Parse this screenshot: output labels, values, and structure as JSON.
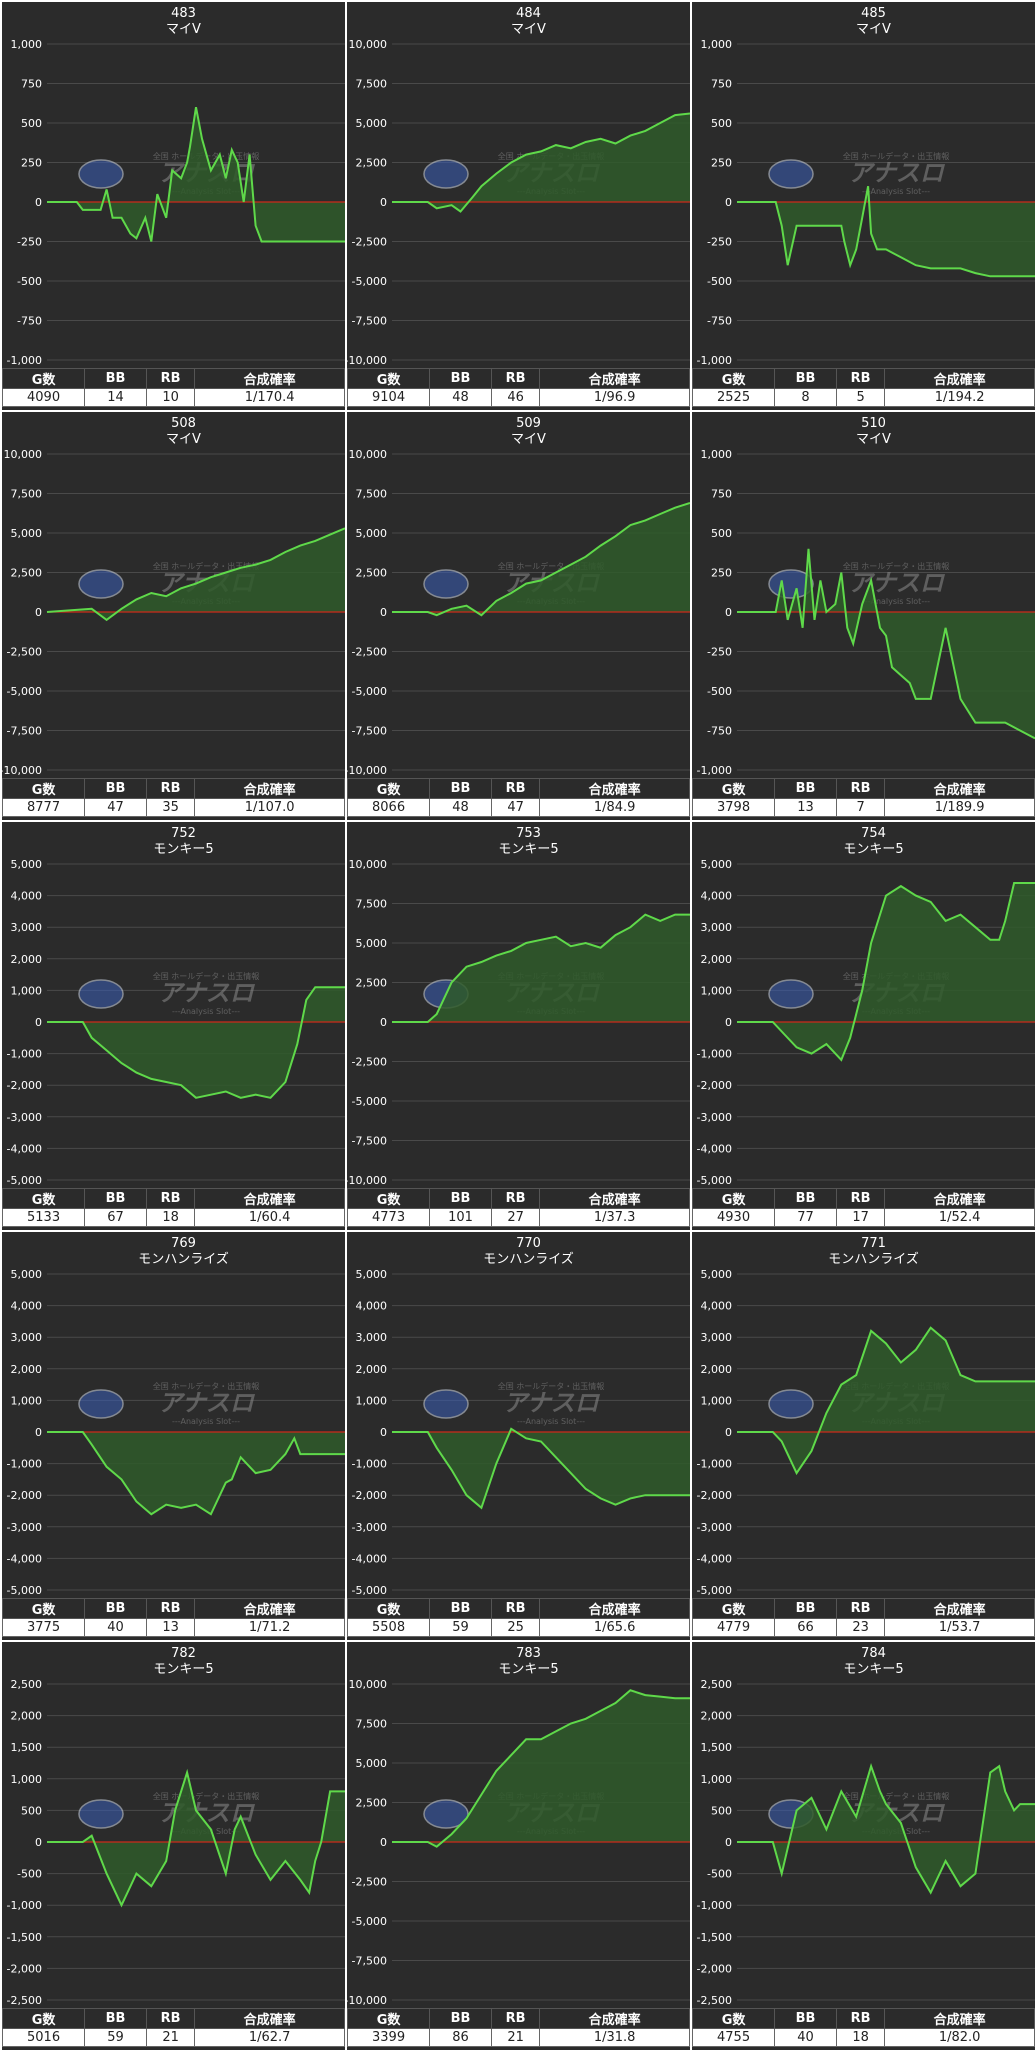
{
  "headers": {
    "g": "G数",
    "bb": "BB",
    "rb": "RB",
    "rate": "合成確率"
  },
  "colors": {
    "panel_bg": "#2b2b2b",
    "line": "#5fd94a",
    "fill": "#2f5a2a",
    "zero_line": "#cc2a1a",
    "grid": "#4a4a4a",
    "text": "#ffffff"
  },
  "watermark": {
    "main": "アナスロ",
    "sub": "---Analysis Slot---",
    "top": "全国 ホールデータ・出玉情報"
  },
  "panels": [
    {
      "number": "483",
      "machine": "マイV",
      "g": "4090",
      "bb": "14",
      "rb": "10",
      "rate": "1/170.4",
      "chart_data": {
        "type": "area",
        "ylim": [
          -1000,
          1000
        ],
        "yticks": [
          "1,000",
          "750",
          "500",
          "250",
          "0",
          "-250",
          "-500",
          "-750",
          "-1,000"
        ],
        "x": [
          0,
          0.1,
          0.12,
          0.18,
          0.2,
          0.22,
          0.25,
          0.28,
          0.3,
          0.33,
          0.35,
          0.37,
          0.4,
          0.42,
          0.45,
          0.47,
          0.48,
          0.5,
          0.52,
          0.55,
          0.58,
          0.6,
          0.62,
          0.64,
          0.66,
          0.68,
          0.7,
          0.72,
          0.75,
          0.8,
          0.9,
          1.0
        ],
        "y": [
          0,
          0,
          -50,
          -50,
          80,
          -100,
          -100,
          -200,
          -230,
          -100,
          -250,
          50,
          -100,
          200,
          150,
          250,
          350,
          600,
          400,
          200,
          300,
          150,
          330,
          250,
          0,
          300,
          -150,
          -250,
          -250,
          -250,
          -250,
          -250
        ]
      }
    },
    {
      "number": "484",
      "machine": "マイV",
      "g": "9104",
      "bb": "48",
      "rb": "46",
      "rate": "1/96.9",
      "chart_data": {
        "type": "area",
        "ylim": [
          -10000,
          10000
        ],
        "yticks": [
          "10,000",
          "7,500",
          "5,000",
          "2,500",
          "0",
          "-2,500",
          "-5,000",
          "-7,500",
          "-10,000"
        ],
        "x": [
          0,
          0.12,
          0.15,
          0.2,
          0.23,
          0.27,
          0.3,
          0.35,
          0.4,
          0.45,
          0.5,
          0.55,
          0.6,
          0.65,
          0.7,
          0.75,
          0.8,
          0.85,
          0.9,
          0.95,
          1.0
        ],
        "y": [
          0,
          0,
          -400,
          -200,
          -600,
          300,
          1000,
          1800,
          2500,
          3000,
          3200,
          3600,
          3400,
          3800,
          4000,
          3700,
          4200,
          4500,
          5000,
          5500,
          5600
        ]
      }
    },
    {
      "number": "485",
      "machine": "マイV",
      "g": "2525",
      "bb": "8",
      "rb": "5",
      "rate": "1/194.2",
      "chart_data": {
        "type": "area",
        "ylim": [
          -1000,
          1000
        ],
        "yticks": [
          "1,000",
          "750",
          "500",
          "250",
          "0",
          "-250",
          "-500",
          "-750",
          "-1,000"
        ],
        "x": [
          0,
          0.13,
          0.15,
          0.17,
          0.2,
          0.22,
          0.25,
          0.35,
          0.36,
          0.38,
          0.4,
          0.42,
          0.44,
          0.45,
          0.47,
          0.5,
          0.55,
          0.6,
          0.65,
          0.7,
          0.75,
          0.8,
          0.85,
          0.9,
          1.0
        ],
        "y": [
          0,
          0,
          -150,
          -400,
          -150,
          -150,
          -150,
          -150,
          -250,
          -400,
          -300,
          -100,
          100,
          -200,
          -300,
          -300,
          -350,
          -400,
          -420,
          -420,
          -420,
          -450,
          -470,
          -470,
          -470
        ]
      }
    },
    {
      "number": "508",
      "machine": "マイV",
      "g": "8777",
      "bb": "47",
      "rb": "35",
      "rate": "1/107.0",
      "chart_data": {
        "type": "area",
        "ylim": [
          -10000,
          10000
        ],
        "yticks": [
          "10,000",
          "7,500",
          "5,000",
          "2,500",
          "0",
          "-2,500",
          "-5,000",
          "-7,500",
          "-10,000"
        ],
        "x": [
          0,
          0.15,
          0.2,
          0.25,
          0.3,
          0.35,
          0.4,
          0.45,
          0.5,
          0.55,
          0.6,
          0.65,
          0.7,
          0.75,
          0.8,
          0.85,
          0.9,
          0.95,
          1.0
        ],
        "y": [
          0,
          200,
          -500,
          200,
          800,
          1200,
          1000,
          1500,
          1800,
          2200,
          2500,
          2800,
          3000,
          3300,
          3800,
          4200,
          4500,
          4900,
          5300
        ]
      }
    },
    {
      "number": "509",
      "machine": "マイV",
      "g": "8066",
      "bb": "48",
      "rb": "47",
      "rate": "1/84.9",
      "chart_data": {
        "type": "area",
        "ylim": [
          -10000,
          10000
        ],
        "yticks": [
          "10,000",
          "7,500",
          "5,000",
          "2,500",
          "0",
          "-2,500",
          "-5,000",
          "-7,500",
          "-10,000"
        ],
        "x": [
          0,
          0.12,
          0.15,
          0.2,
          0.25,
          0.3,
          0.35,
          0.4,
          0.45,
          0.5,
          0.55,
          0.6,
          0.65,
          0.7,
          0.75,
          0.8,
          0.85,
          0.9,
          0.95,
          1.0
        ],
        "y": [
          0,
          0,
          -200,
          200,
          400,
          -200,
          700,
          1200,
          1800,
          2000,
          2500,
          3000,
          3500,
          4200,
          4800,
          5500,
          5800,
          6200,
          6600,
          6900
        ]
      }
    },
    {
      "number": "510",
      "machine": "マイV",
      "g": "3798",
      "bb": "13",
      "rb": "7",
      "rate": "1/189.9",
      "chart_data": {
        "type": "area",
        "ylim": [
          -1000,
          1000
        ],
        "yticks": [
          "1,000",
          "750",
          "500",
          "250",
          "0",
          "-250",
          "-500",
          "-750",
          "-1,000"
        ],
        "x": [
          0,
          0.13,
          0.15,
          0.17,
          0.2,
          0.22,
          0.24,
          0.26,
          0.28,
          0.3,
          0.33,
          0.35,
          0.37,
          0.39,
          0.42,
          0.45,
          0.48,
          0.5,
          0.52,
          0.55,
          0.58,
          0.6,
          0.65,
          0.7,
          0.75,
          0.8,
          0.9,
          1.0
        ],
        "y": [
          0,
          0,
          200,
          -50,
          150,
          -100,
          400,
          -50,
          200,
          0,
          50,
          250,
          -100,
          -200,
          50,
          200,
          -100,
          -150,
          -350,
          -400,
          -450,
          -550,
          -550,
          -100,
          -550,
          -700,
          -700,
          -800
        ]
      }
    },
    {
      "number": "752",
      "machine": "モンキー5",
      "g": "5133",
      "bb": "67",
      "rb": "18",
      "rate": "1/60.4",
      "chart_data": {
        "type": "area",
        "ylim": [
          -5000,
          5000
        ],
        "yticks": [
          "5,000",
          "4,000",
          "3,000",
          "2,000",
          "1,000",
          "0",
          "-1,000",
          "-2,000",
          "-3,000",
          "-4,000",
          "-5,000"
        ],
        "x": [
          0,
          0.12,
          0.15,
          0.2,
          0.25,
          0.3,
          0.35,
          0.4,
          0.45,
          0.5,
          0.55,
          0.6,
          0.65,
          0.7,
          0.75,
          0.8,
          0.84,
          0.87,
          0.9,
          0.95,
          1.0
        ],
        "y": [
          0,
          0,
          -500,
          -900,
          -1300,
          -1600,
          -1800,
          -1900,
          -2000,
          -2400,
          -2300,
          -2200,
          -2400,
          -2300,
          -2400,
          -1900,
          -700,
          700,
          1100,
          1100,
          1100
        ]
      }
    },
    {
      "number": "753",
      "machine": "モンキー5",
      "g": "4773",
      "bb": "101",
      "rb": "27",
      "rate": "1/37.3",
      "chart_data": {
        "type": "area",
        "ylim": [
          -10000,
          10000
        ],
        "yticks": [
          "10,000",
          "7,500",
          "5,000",
          "2,500",
          "0",
          "-2,500",
          "-5,000",
          "-7,500",
          "-10,000"
        ],
        "x": [
          0,
          0.12,
          0.15,
          0.2,
          0.25,
          0.3,
          0.35,
          0.4,
          0.45,
          0.5,
          0.55,
          0.6,
          0.65,
          0.7,
          0.75,
          0.8,
          0.85,
          0.9,
          0.95,
          1.0
        ],
        "y": [
          0,
          0,
          500,
          2500,
          3500,
          3800,
          4200,
          4500,
          5000,
          5200,
          5400,
          4800,
          5000,
          4700,
          5500,
          6000,
          6800,
          6400,
          6800,
          6800
        ]
      }
    },
    {
      "number": "754",
      "machine": "モンキー5",
      "g": "4930",
      "bb": "77",
      "rb": "17",
      "rate": "1/52.4",
      "chart_data": {
        "type": "area",
        "ylim": [
          -5000,
          5000
        ],
        "yticks": [
          "5,000",
          "4,000",
          "3,000",
          "2,000",
          "1,000",
          "0",
          "-1,000",
          "-2,000",
          "-3,000",
          "-4,000",
          "-5,000"
        ],
        "x": [
          0,
          0.12,
          0.15,
          0.2,
          0.25,
          0.3,
          0.35,
          0.38,
          0.42,
          0.45,
          0.5,
          0.55,
          0.6,
          0.65,
          0.7,
          0.75,
          0.8,
          0.85,
          0.88,
          0.9,
          0.93,
          0.95,
          1.0
        ],
        "y": [
          0,
          0,
          -300,
          -800,
          -1000,
          -700,
          -1200,
          -500,
          1000,
          2500,
          4000,
          4300,
          4000,
          3800,
          3200,
          3400,
          3000,
          2600,
          2600,
          3200,
          4400,
          4400,
          4400
        ]
      }
    },
    {
      "number": "769",
      "machine": "モンハンライズ",
      "g": "3775",
      "bb": "40",
      "rb": "13",
      "rate": "1/71.2",
      "chart_data": {
        "type": "area",
        "ylim": [
          -5000,
          5000
        ],
        "yticks": [
          "5,000",
          "4,000",
          "3,000",
          "2,000",
          "1,000",
          "0",
          "-1,000",
          "-2,000",
          "-3,000",
          "-4,000",
          "-5,000"
        ],
        "x": [
          0,
          0.12,
          0.15,
          0.2,
          0.25,
          0.3,
          0.35,
          0.4,
          0.45,
          0.5,
          0.55,
          0.6,
          0.62,
          0.65,
          0.7,
          0.75,
          0.8,
          0.83,
          0.85,
          0.9,
          0.95,
          1.0
        ],
        "y": [
          0,
          0,
          -400,
          -1100,
          -1500,
          -2200,
          -2600,
          -2300,
          -2400,
          -2300,
          -2600,
          -1600,
          -1500,
          -800,
          -1300,
          -1200,
          -700,
          -200,
          -700,
          -700,
          -700,
          -700
        ]
      }
    },
    {
      "number": "770",
      "machine": "モンハンライズ",
      "g": "5508",
      "bb": "59",
      "rb": "25",
      "rate": "1/65.6",
      "chart_data": {
        "type": "area",
        "ylim": [
          -5000,
          5000
        ],
        "yticks": [
          "5,000",
          "4,000",
          "3,000",
          "2,000",
          "1,000",
          "0",
          "-1,000",
          "-2,000",
          "-3,000",
          "-4,000",
          "-5,000"
        ],
        "x": [
          0,
          0.12,
          0.15,
          0.2,
          0.25,
          0.3,
          0.35,
          0.4,
          0.45,
          0.5,
          0.55,
          0.6,
          0.65,
          0.7,
          0.75,
          0.8,
          0.85,
          0.9,
          0.95,
          1.0
        ],
        "y": [
          0,
          0,
          -500,
          -1200,
          -2000,
          -2400,
          -1000,
          100,
          -200,
          -300,
          -800,
          -1300,
          -1800,
          -2100,
          -2300,
          -2100,
          -2000,
          -2000,
          -2000,
          -2000
        ]
      }
    },
    {
      "number": "771",
      "machine": "モンハンライズ",
      "g": "4779",
      "bb": "66",
      "rb": "23",
      "rate": "1/53.7",
      "chart_data": {
        "type": "area",
        "ylim": [
          -5000,
          5000
        ],
        "yticks": [
          "5,000",
          "4,000",
          "3,000",
          "2,000",
          "1,000",
          "0",
          "-1,000",
          "-2,000",
          "-3,000",
          "-4,000",
          "-5,000"
        ],
        "x": [
          0,
          0.12,
          0.15,
          0.2,
          0.25,
          0.3,
          0.35,
          0.4,
          0.45,
          0.5,
          0.55,
          0.6,
          0.65,
          0.7,
          0.75,
          0.8,
          0.85,
          0.9,
          0.95,
          1.0
        ],
        "y": [
          0,
          0,
          -300,
          -1300,
          -600,
          600,
          1500,
          1800,
          3200,
          2800,
          2200,
          2600,
          3300,
          2900,
          1800,
          1600,
          1600,
          1600,
          1600,
          1600
        ]
      }
    },
    {
      "number": "782",
      "machine": "モンキー5",
      "g": "5016",
      "bb": "59",
      "rb": "21",
      "rate": "1/62.7",
      "chart_data": {
        "type": "area",
        "ylim": [
          -2500,
          2500
        ],
        "yticks": [
          "2,500",
          "2,000",
          "1,500",
          "1,000",
          "500",
          "0",
          "-500",
          "-1,000",
          "-1,500",
          "-2,000",
          "-2,500"
        ],
        "x": [
          0,
          0.12,
          0.15,
          0.2,
          0.25,
          0.3,
          0.35,
          0.4,
          0.43,
          0.47,
          0.5,
          0.55,
          0.6,
          0.63,
          0.65,
          0.7,
          0.75,
          0.8,
          0.85,
          0.88,
          0.9,
          0.92,
          0.95,
          1.0
        ],
        "y": [
          0,
          0,
          100,
          -500,
          -1000,
          -500,
          -700,
          -300,
          500,
          1100,
          500,
          200,
          -500,
          200,
          400,
          -200,
          -600,
          -300,
          -600,
          -800,
          -300,
          0,
          800,
          800
        ]
      }
    },
    {
      "number": "783",
      "machine": "モンキー5",
      "g": "3399",
      "bb": "86",
      "rb": "21",
      "rate": "1/31.8",
      "chart_data": {
        "type": "area",
        "ylim": [
          -10000,
          10000
        ],
        "yticks": [
          "10,000",
          "7,500",
          "5,000",
          "2,500",
          "0",
          "-2,500",
          "-5,000",
          "-7,500",
          "-10,000"
        ],
        "x": [
          0,
          0.12,
          0.15,
          0.2,
          0.25,
          0.3,
          0.35,
          0.4,
          0.45,
          0.5,
          0.55,
          0.6,
          0.65,
          0.7,
          0.75,
          0.8,
          0.85,
          0.9,
          0.95,
          1.0
        ],
        "y": [
          0,
          0,
          -300,
          500,
          1500,
          3000,
          4500,
          5500,
          6500,
          6500,
          7000,
          7500,
          7800,
          8300,
          8800,
          9600,
          9300,
          9200,
          9100,
          9100
        ]
      }
    },
    {
      "number": "784",
      "machine": "モンキー5",
      "g": "4755",
      "bb": "40",
      "rb": "18",
      "rate": "1/82.0",
      "chart_data": {
        "type": "area",
        "ylim": [
          -2500,
          2500
        ],
        "yticks": [
          "2,500",
          "2,000",
          "1,500",
          "1,000",
          "500",
          "0",
          "-500",
          "-1,000",
          "-1,500",
          "-2,000",
          "-2,500"
        ],
        "x": [
          0,
          0.12,
          0.15,
          0.2,
          0.25,
          0.3,
          0.35,
          0.4,
          0.45,
          0.48,
          0.5,
          0.55,
          0.6,
          0.65,
          0.7,
          0.75,
          0.8,
          0.85,
          0.88,
          0.9,
          0.93,
          0.95,
          1.0
        ],
        "y": [
          0,
          0,
          -500,
          500,
          700,
          200,
          800,
          400,
          1200,
          800,
          600,
          300,
          -400,
          -800,
          -300,
          -700,
          -500,
          1100,
          1200,
          800,
          500,
          600,
          600
        ]
      }
    }
  ]
}
